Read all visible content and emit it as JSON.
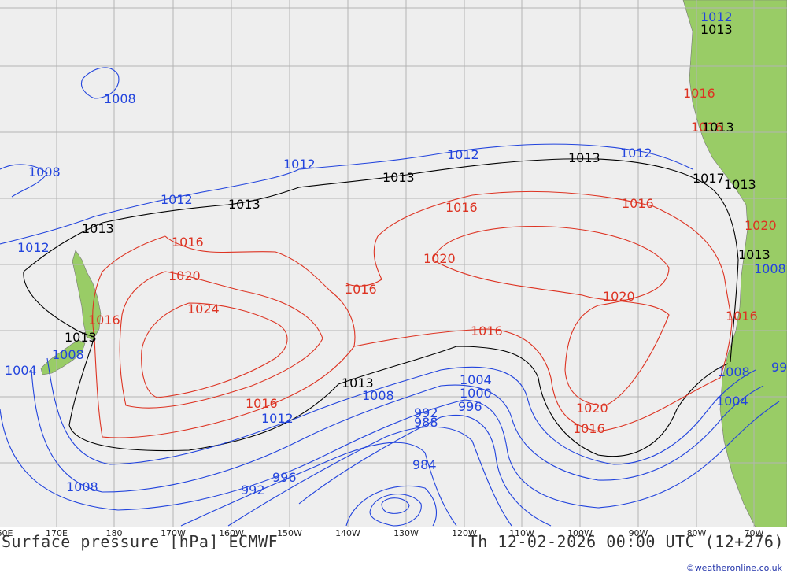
{
  "title": "Surface pressure [hPa] ECMWF",
  "valid_time": "Th 12-02-2026 00:00 UTC (12+276)",
  "credit": "©weatheronline.co.uk",
  "colors": {
    "low": "#2244dd",
    "ref": "#000000",
    "high": "#dd3322",
    "ocean": "#eeeeee",
    "land": "#99cc66",
    "grid": "#b4b4b4"
  },
  "longitude_labels": [
    "60E",
    "170E",
    "180",
    "170W",
    "160W",
    "150W",
    "140W",
    "130W",
    "120W",
    "110W",
    "100W",
    "90W",
    "80W",
    "70W"
  ],
  "isobar_labels": {
    "l1008a": "1008",
    "l1008b": "1008",
    "l1012a": "1012",
    "l1012b": "1012",
    "l1012c": "1012",
    "l1012d": "1012",
    "l1012e": "1012",
    "l1013a": "1013",
    "l1013b": "1013",
    "l1013c": "1013",
    "l1013d": "1013",
    "l1013e": "1013",
    "l1016a": "1016",
    "l1016b": "1016",
    "l1016c": "1016",
    "l1016d": "1016",
    "l1020a": "1020",
    "l1020b": "1020",
    "l1020c": "1020",
    "l1024": "1024",
    "l1013nz": "1013",
    "l1016nz": "1016",
    "l1008nz": "1008",
    "l1004nz": "1004",
    "l1013s": "1013",
    "l1016s": "1016",
    "l1008s": "1008",
    "l1012s": "1012",
    "l1004s": "1004",
    "l1000s": "1000",
    "l996s": "996",
    "l992s": "992",
    "l988s": "988",
    "l984s": "984",
    "l996b": "996",
    "l992b": "992",
    "l1008w": "1008",
    "l1020se": "1020",
    "l1016se": "1016",
    "c1012": "1012",
    "c1013": "1013",
    "c1016a": "1016",
    "c1016b": "1016",
    "c1013b": "1013",
    "c1017": "1017",
    "c1013c": "1013",
    "c1020": "1020",
    "c1013d": "1013",
    "c1008a": "1008",
    "c1016c": "1016",
    "c1008b": "1008",
    "c1004": "1004",
    "c99": "99"
  }
}
